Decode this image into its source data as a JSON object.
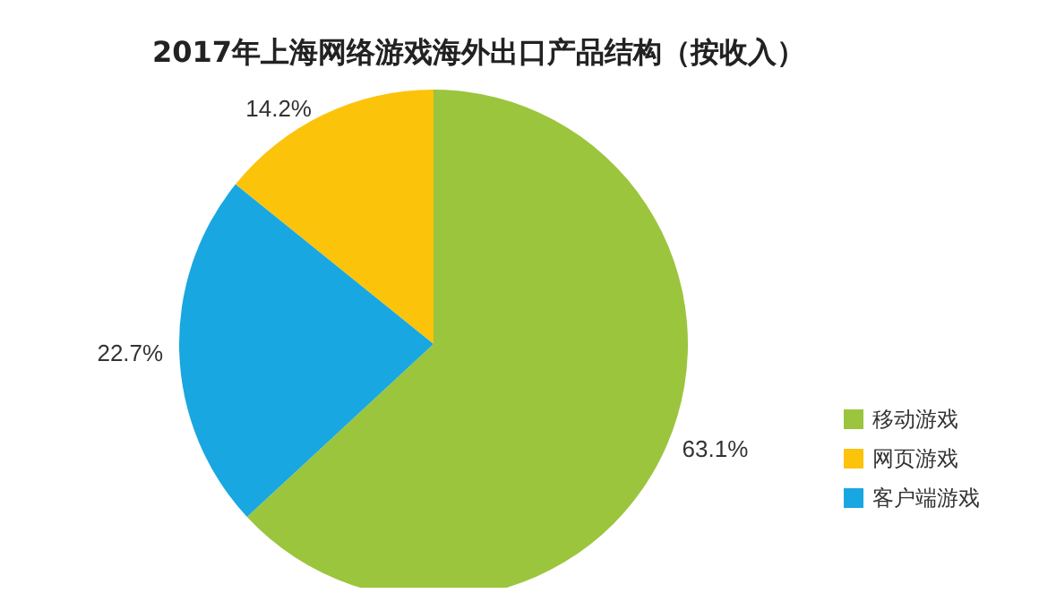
{
  "chart_data": {
    "type": "pie",
    "title": "2017年上海网络游戏海外出口产品结构（按收入）",
    "categories": [
      "移动游戏",
      "网页游戏",
      "客户端游戏"
    ],
    "values": [
      63.1,
      14.2,
      22.7
    ],
    "colors": [
      "#9bc53d",
      "#fcc30b",
      "#18a7e0"
    ],
    "value_labels": [
      "63.1%",
      "14.2%",
      "22.7%"
    ],
    "legend": "right"
  }
}
